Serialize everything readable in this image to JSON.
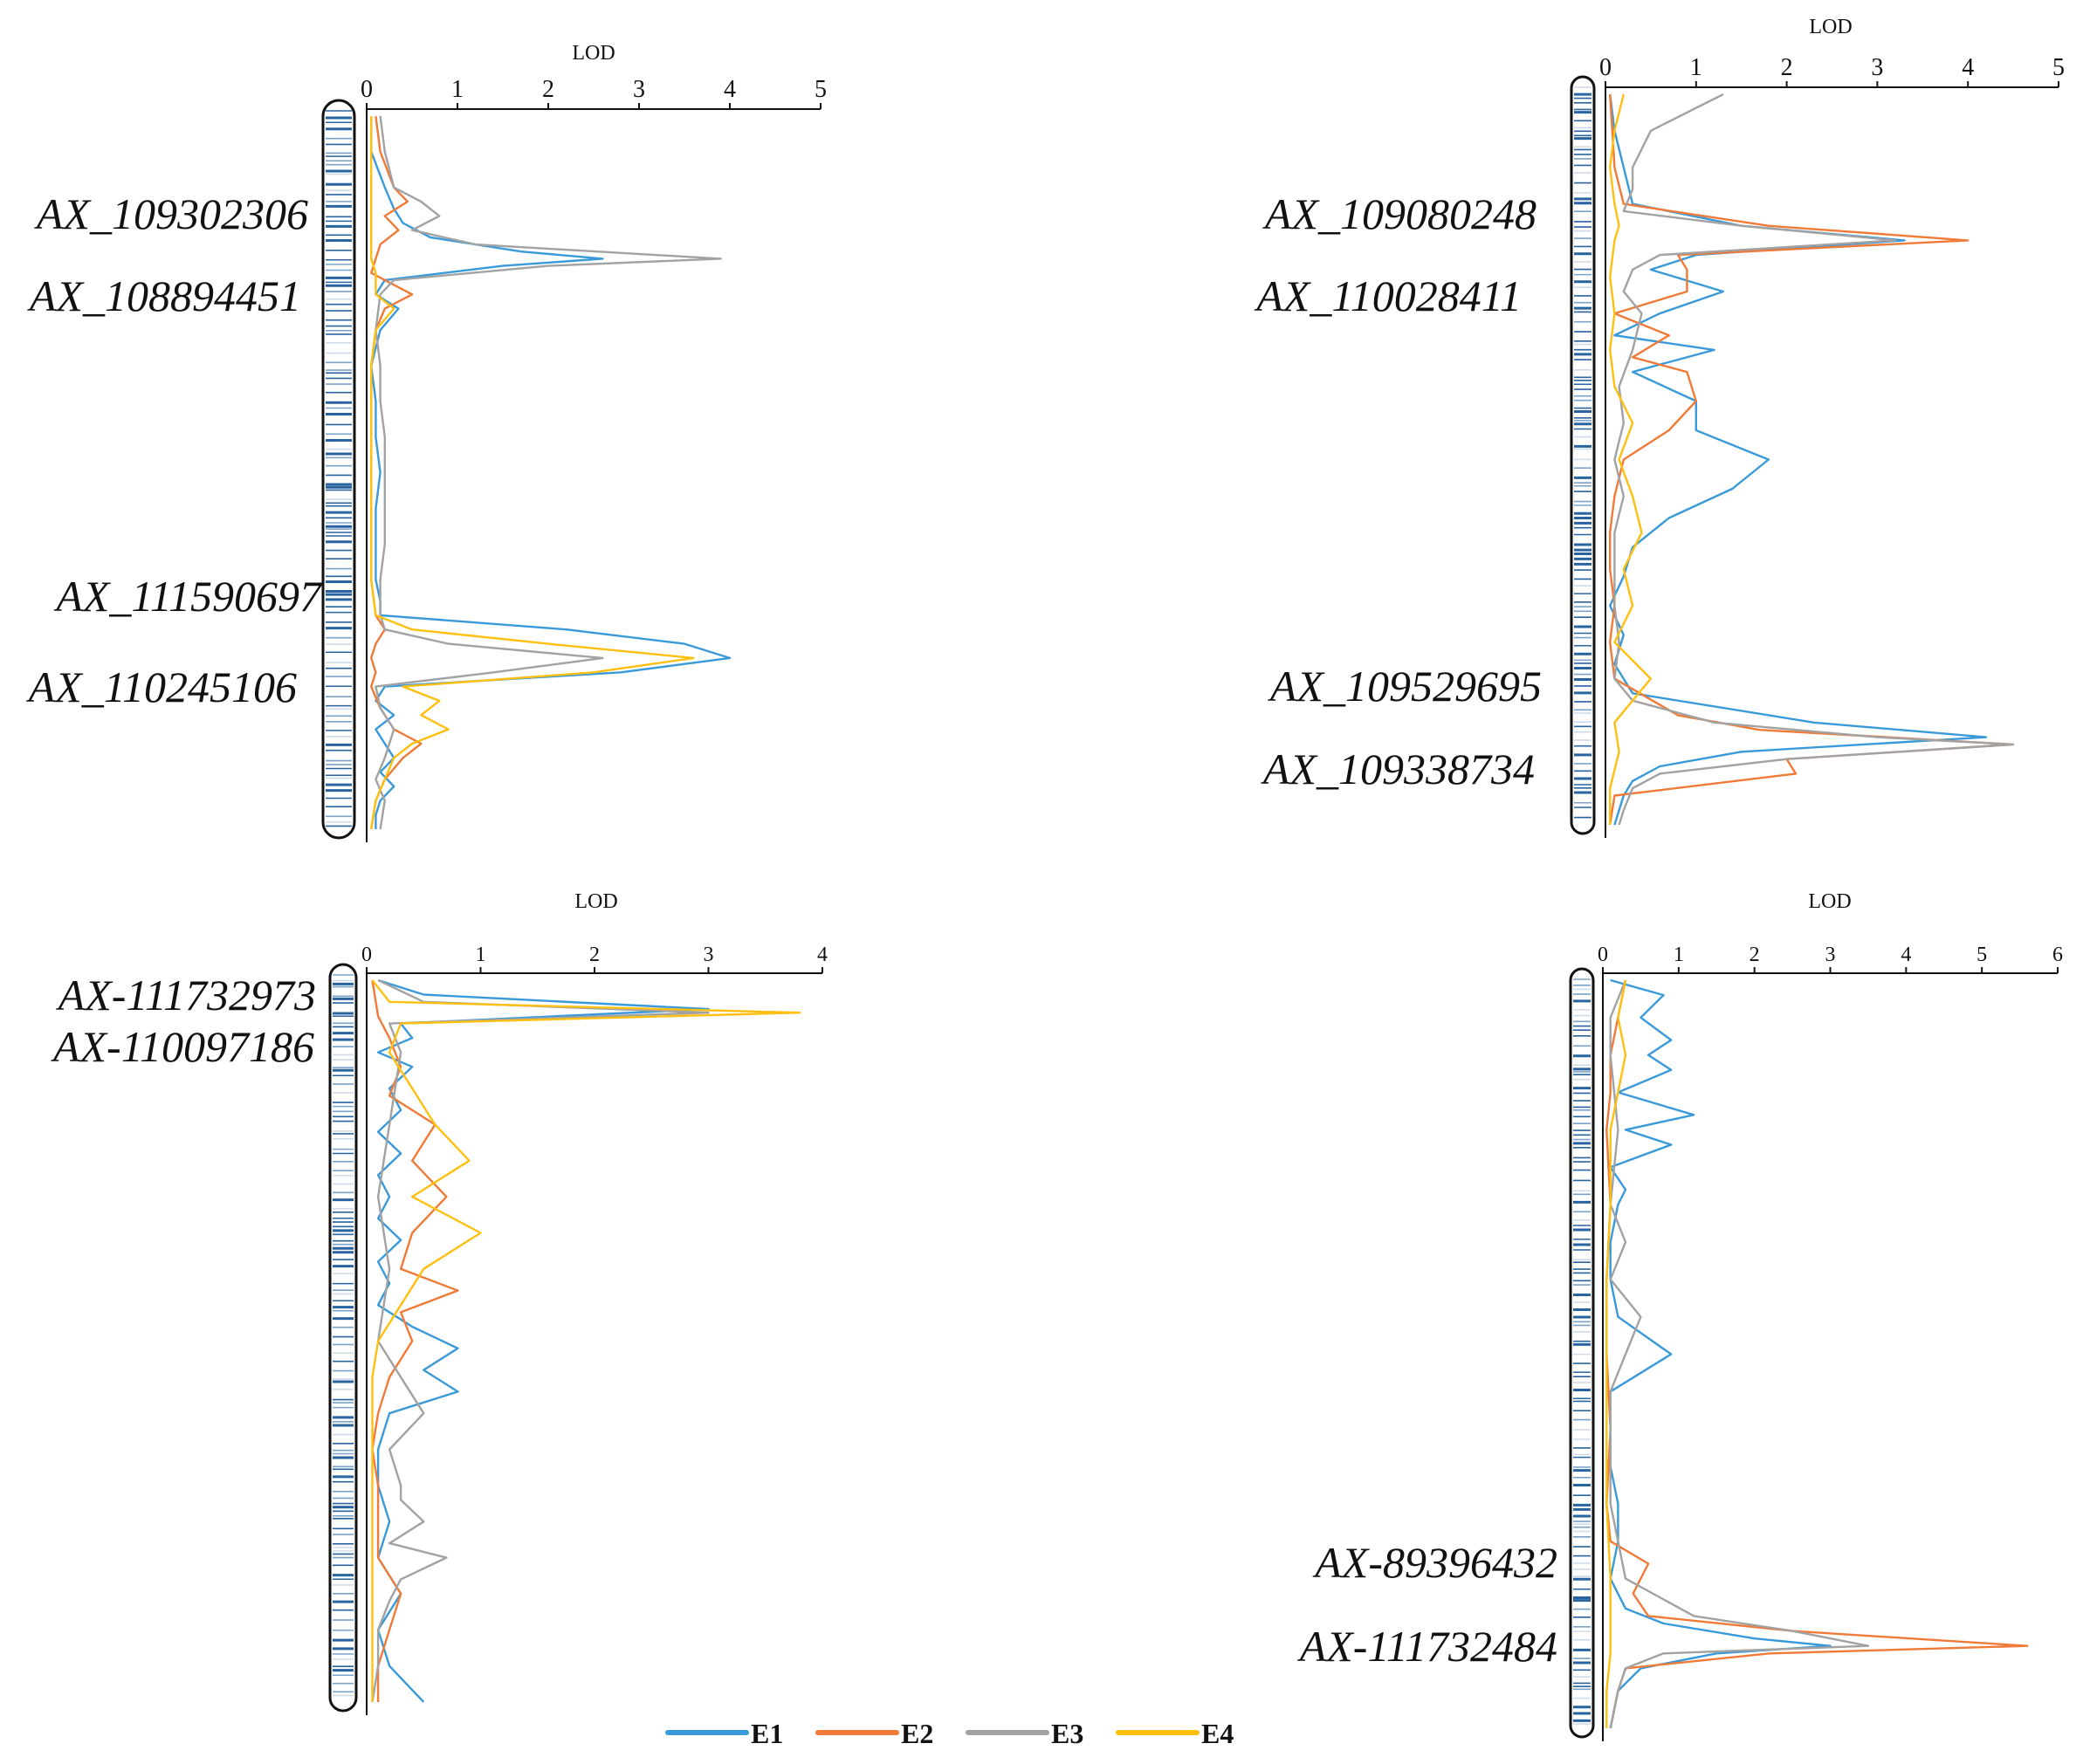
{
  "legend": [
    {
      "label": "E1",
      "color": "#3a9ad9"
    },
    {
      "label": "E2",
      "color": "#f07b38"
    },
    {
      "label": "E3",
      "color": "#a2a2a2"
    },
    {
      "label": "E4",
      "color": "#fec010"
    }
  ],
  "chart_data": [
    {
      "type": "line",
      "orientation": "vertical position, horizontal LOD",
      "xlabel": "LOD",
      "xticks": [
        "0",
        "1",
        "2",
        "3",
        "4",
        "5"
      ],
      "xlim": [
        0,
        5
      ],
      "grid": false,
      "markers": [
        "AX_109302306",
        "AX_108894451",
        "AX_111590697",
        "AX_110245106"
      ],
      "series": [
        {
          "name": "E1",
          "positions": [
            0,
            0.05,
            0.1,
            0.13,
            0.15,
            0.17,
            0.19,
            0.2,
            0.21,
            0.23,
            0.25,
            0.27,
            0.3,
            0.35,
            0.4,
            0.45,
            0.5,
            0.55,
            0.6,
            0.65,
            0.68,
            0.7,
            0.72,
            0.74,
            0.76,
            0.78,
            0.8,
            0.82,
            0.84,
            0.86,
            0.88,
            0.9,
            0.92,
            0.94,
            0.96,
            0.98,
            1.0
          ],
          "values": [
            0.05,
            0.05,
            0.2,
            0.3,
            0.4,
            0.7,
            1.7,
            2.6,
            1.5,
            0.2,
            0.1,
            0.35,
            0.15,
            0.05,
            0.1,
            0.1,
            0.15,
            0.1,
            0.1,
            0.1,
            0.15,
            0.15,
            2.2,
            3.5,
            4.0,
            2.8,
            0.2,
            0.1,
            0.3,
            0.1,
            0.2,
            0.3,
            0.15,
            0.3,
            0.15,
            0.1,
            0.1
          ]
        },
        {
          "name": "E2",
          "positions": [
            0,
            0.05,
            0.1,
            0.12,
            0.14,
            0.16,
            0.18,
            0.2,
            0.22,
            0.25,
            0.27,
            0.3,
            0.35,
            0.4,
            0.45,
            0.5,
            0.55,
            0.6,
            0.65,
            0.7,
            0.72,
            0.74,
            0.76,
            0.78,
            0.8,
            0.83,
            0.86,
            0.88,
            0.9,
            0.93,
            0.96,
            1.0
          ],
          "values": [
            0.1,
            0.15,
            0.3,
            0.45,
            0.2,
            0.35,
            0.15,
            0.1,
            0.05,
            0.5,
            0.2,
            0.1,
            0.05,
            0.05,
            0.05,
            0.05,
            0.05,
            0.05,
            0.05,
            0.1,
            0.2,
            0.1,
            0.05,
            0.1,
            0.05,
            0.15,
            0.3,
            0.6,
            0.4,
            0.2,
            0.1,
            0.05
          ]
        },
        {
          "name": "E3",
          "positions": [
            0,
            0.05,
            0.1,
            0.12,
            0.14,
            0.16,
            0.18,
            0.2,
            0.21,
            0.23,
            0.25,
            0.3,
            0.35,
            0.4,
            0.45,
            0.5,
            0.55,
            0.6,
            0.65,
            0.7,
            0.72,
            0.74,
            0.76,
            0.78,
            0.8,
            0.83,
            0.86,
            0.9,
            0.93,
            0.96,
            1.0
          ],
          "values": [
            0.15,
            0.2,
            0.3,
            0.6,
            0.8,
            0.5,
            1.2,
            3.9,
            2.0,
            0.3,
            0.15,
            0.1,
            0.15,
            0.15,
            0.2,
            0.2,
            0.2,
            0.2,
            0.15,
            0.15,
            0.2,
            0.9,
            2.6,
            1.4,
            0.1,
            0.15,
            0.3,
            0.2,
            0.1,
            0.2,
            0.15
          ]
        },
        {
          "name": "E4",
          "positions": [
            0,
            0.1,
            0.15,
            0.2,
            0.22,
            0.25,
            0.27,
            0.3,
            0.35,
            0.4,
            0.5,
            0.6,
            0.65,
            0.7,
            0.72,
            0.74,
            0.76,
            0.78,
            0.8,
            0.82,
            0.84,
            0.86,
            0.88,
            0.9,
            0.93,
            0.96,
            1.0
          ],
          "values": [
            0.05,
            0.05,
            0.05,
            0.05,
            0.1,
            0.1,
            0.3,
            0.1,
            0.05,
            0.05,
            0.05,
            0.05,
            0.05,
            0.1,
            0.5,
            2.0,
            3.6,
            2.5,
            0.4,
            0.8,
            0.6,
            0.9,
            0.5,
            0.3,
            0.2,
            0.1,
            0.05
          ]
        }
      ]
    },
    {
      "type": "line",
      "orientation": "vertical position, horizontal LOD",
      "xlabel": "LOD",
      "xticks": [
        "0",
        "1",
        "2",
        "3",
        "4",
        "5"
      ],
      "xlim": [
        0,
        5
      ],
      "grid": false,
      "markers": [
        "AX_109080248",
        "AX_110028411",
        "AX_109529695",
        "AX_109338734"
      ],
      "series": [
        {
          "name": "E1",
          "positions": [
            0,
            0.05,
            0.1,
            0.15,
            0.18,
            0.2,
            0.22,
            0.24,
            0.27,
            0.3,
            0.33,
            0.35,
            0.38,
            0.42,
            0.46,
            0.5,
            0.54,
            0.58,
            0.62,
            0.66,
            0.7,
            0.74,
            0.78,
            0.82,
            0.86,
            0.88,
            0.9,
            0.92,
            0.94,
            0.96,
            1.0
          ],
          "values": [
            0.05,
            0.1,
            0.2,
            0.3,
            1.5,
            3.3,
            1.0,
            0.5,
            1.3,
            0.6,
            0.1,
            1.2,
            0.3,
            1.0,
            1.0,
            1.8,
            1.4,
            0.7,
            0.3,
            0.2,
            0.05,
            0.2,
            0.1,
            0.3,
            2.3,
            4.2,
            1.5,
            0.6,
            0.3,
            0.2,
            0.1
          ]
        },
        {
          "name": "E2",
          "positions": [
            0,
            0.1,
            0.15,
            0.18,
            0.2,
            0.22,
            0.24,
            0.27,
            0.3,
            0.33,
            0.36,
            0.38,
            0.42,
            0.46,
            0.5,
            0.55,
            0.6,
            0.65,
            0.7,
            0.75,
            0.8,
            0.85,
            0.87,
            0.89,
            0.91,
            0.93,
            0.96,
            1.0
          ],
          "values": [
            0.05,
            0.1,
            0.2,
            1.8,
            4.0,
            0.8,
            0.9,
            0.9,
            0.1,
            0.7,
            0.3,
            0.9,
            1.0,
            0.7,
            0.2,
            0.1,
            0.05,
            0.05,
            0.1,
            0.05,
            0.1,
            0.8,
            1.7,
            4.5,
            2.0,
            2.1,
            0.1,
            0.05
          ]
        },
        {
          "name": "E3",
          "positions": [
            0,
            0.05,
            0.1,
            0.13,
            0.16,
            0.18,
            0.2,
            0.22,
            0.24,
            0.27,
            0.3,
            0.35,
            0.4,
            0.45,
            0.5,
            0.55,
            0.6,
            0.65,
            0.7,
            0.75,
            0.8,
            0.83,
            0.86,
            0.88,
            0.89,
            0.91,
            0.93,
            0.95,
            0.98,
            1.0
          ],
          "values": [
            1.3,
            0.5,
            0.3,
            0.3,
            0.2,
            1.5,
            3.2,
            0.6,
            0.3,
            0.2,
            0.4,
            0.3,
            0.15,
            0.2,
            0.1,
            0.2,
            0.1,
            0.1,
            0.1,
            0.15,
            0.1,
            0.3,
            1.2,
            3.0,
            4.5,
            2.0,
            0.6,
            0.3,
            0.2,
            0.15
          ]
        },
        {
          "name": "E4",
          "positions": [
            0,
            0.05,
            0.1,
            0.15,
            0.18,
            0.2,
            0.25,
            0.3,
            0.35,
            0.4,
            0.45,
            0.5,
            0.55,
            0.6,
            0.65,
            0.7,
            0.75,
            0.8,
            0.83,
            0.86,
            0.9,
            0.95,
            1.0
          ],
          "values": [
            0.2,
            0.1,
            0.05,
            0.1,
            0.15,
            0.1,
            0.05,
            0.1,
            0.05,
            0.1,
            0.3,
            0.15,
            0.3,
            0.4,
            0.2,
            0.3,
            0.1,
            0.5,
            0.3,
            0.1,
            0.15,
            0.05,
            0.05
          ]
        }
      ]
    },
    {
      "type": "line",
      "orientation": "vertical position, horizontal LOD",
      "xlabel": "LOD",
      "xticks": [
        "0",
        "1",
        "2",
        "3",
        "4"
      ],
      "xlim": [
        0,
        4
      ],
      "grid": false,
      "markers": [
        "AX-111732973",
        "AX-110097186"
      ],
      "series": [
        {
          "name": "E1",
          "positions": [
            0,
            0.02,
            0.04,
            0.06,
            0.08,
            0.1,
            0.12,
            0.15,
            0.18,
            0.21,
            0.24,
            0.27,
            0.3,
            0.33,
            0.36,
            0.39,
            0.42,
            0.45,
            0.48,
            0.51,
            0.54,
            0.57,
            0.6,
            0.65,
            0.7,
            0.75,
            0.8,
            0.85,
            0.9,
            0.95,
            1.0
          ],
          "values": [
            0.1,
            0.5,
            3.0,
            0.3,
            0.4,
            0.1,
            0.4,
            0.2,
            0.3,
            0.1,
            0.3,
            0.1,
            0.2,
            0.1,
            0.3,
            0.1,
            0.2,
            0.1,
            0.4,
            0.8,
            0.5,
            0.8,
            0.2,
            0.1,
            0.1,
            0.2,
            0.1,
            0.3,
            0.1,
            0.2,
            0.5
          ]
        },
        {
          "name": "E2",
          "positions": [
            0,
            0.05,
            0.08,
            0.12,
            0.16,
            0.2,
            0.25,
            0.3,
            0.35,
            0.4,
            0.43,
            0.46,
            0.5,
            0.55,
            0.6,
            0.65,
            0.7,
            0.75,
            0.8,
            0.85,
            0.9,
            0.95,
            1.0
          ],
          "values": [
            0.05,
            0.1,
            0.2,
            0.3,
            0.2,
            0.6,
            0.4,
            0.7,
            0.4,
            0.3,
            0.8,
            0.3,
            0.4,
            0.2,
            0.1,
            0.05,
            0.1,
            0.1,
            0.1,
            0.3,
            0.2,
            0.1,
            0.1
          ]
        },
        {
          "name": "E3",
          "positions": [
            0,
            0.03,
            0.045,
            0.06,
            0.1,
            0.2,
            0.3,
            0.4,
            0.5,
            0.55,
            0.6,
            0.65,
            0.7,
            0.72,
            0.75,
            0.78,
            0.8,
            0.83,
            0.86,
            0.9,
            0.95,
            1.0
          ],
          "values": [
            0.1,
            0.5,
            3.0,
            0.2,
            0.3,
            0.2,
            0.1,
            0.2,
            0.1,
            0.3,
            0.5,
            0.2,
            0.3,
            0.3,
            0.5,
            0.2,
            0.7,
            0.3,
            0.2,
            0.1,
            0.1,
            0.05
          ]
        },
        {
          "name": "E4",
          "positions": [
            0,
            0.03,
            0.045,
            0.06,
            0.1,
            0.15,
            0.2,
            0.25,
            0.3,
            0.35,
            0.4,
            0.45,
            0.5,
            0.55,
            0.6,
            0.7,
            0.8,
            0.9,
            1.0
          ],
          "values": [
            0.05,
            0.2,
            3.8,
            0.3,
            0.2,
            0.4,
            0.6,
            0.9,
            0.4,
            1.0,
            0.5,
            0.3,
            0.1,
            0.05,
            0.05,
            0.05,
            0.05,
            0.05,
            0.05
          ]
        }
      ]
    },
    {
      "type": "line",
      "orientation": "vertical position, horizontal LOD",
      "xlabel": "LOD",
      "xticks": [
        "0",
        "1",
        "2",
        "3",
        "4",
        "5",
        "6"
      ],
      "xlim": [
        0,
        6
      ],
      "grid": false,
      "markers": [
        "AX-89396432",
        "AX-111732484"
      ],
      "series": [
        {
          "name": "E1",
          "positions": [
            0,
            0.02,
            0.05,
            0.08,
            0.1,
            0.12,
            0.15,
            0.18,
            0.2,
            0.22,
            0.25,
            0.28,
            0.3,
            0.35,
            0.4,
            0.45,
            0.5,
            0.55,
            0.6,
            0.65,
            0.7,
            0.75,
            0.8,
            0.84,
            0.86,
            0.88,
            0.89,
            0.9,
            0.92,
            0.95,
            1.0
          ],
          "values": [
            0.1,
            0.8,
            0.5,
            0.9,
            0.6,
            0.9,
            0.2,
            1.2,
            0.3,
            0.9,
            0.1,
            0.3,
            0.2,
            0.1,
            0.1,
            0.2,
            0.9,
            0.1,
            0.1,
            0.1,
            0.2,
            0.2,
            0.1,
            0.3,
            0.8,
            2.0,
            3.0,
            1.5,
            0.5,
            0.2,
            0.1
          ]
        },
        {
          "name": "E2",
          "positions": [
            0,
            0.05,
            0.1,
            0.15,
            0.2,
            0.3,
            0.4,
            0.5,
            0.6,
            0.7,
            0.75,
            0.78,
            0.82,
            0.85,
            0.87,
            0.89,
            0.9,
            0.92,
            0.95,
            1.0
          ],
          "values": [
            0.3,
            0.2,
            0.1,
            0.1,
            0.05,
            0.1,
            0.05,
            0.05,
            0.1,
            0.05,
            0.1,
            0.6,
            0.4,
            0.6,
            2.5,
            5.6,
            2.2,
            0.3,
            0.2,
            0.1
          ]
        },
        {
          "name": "E3",
          "positions": [
            0,
            0.05,
            0.1,
            0.2,
            0.3,
            0.35,
            0.4,
            0.45,
            0.5,
            0.55,
            0.6,
            0.65,
            0.7,
            0.75,
            0.8,
            0.85,
            0.87,
            0.89,
            0.9,
            0.92,
            0.95,
            1.0
          ],
          "values": [
            0.3,
            0.1,
            0.1,
            0.2,
            0.1,
            0.3,
            0.1,
            0.5,
            0.3,
            0.1,
            0.1,
            0.1,
            0.1,
            0.2,
            0.3,
            1.2,
            2.5,
            3.5,
            0.8,
            0.3,
            0.2,
            0.1
          ]
        },
        {
          "name": "E4",
          "positions": [
            0,
            0.05,
            0.1,
            0.15,
            0.2,
            0.3,
            0.4,
            0.5,
            0.6,
            0.7,
            0.8,
            0.9,
            0.95,
            1.0
          ],
          "values": [
            0.3,
            0.2,
            0.3,
            0.2,
            0.1,
            0.1,
            0.05,
            0.05,
            0.05,
            0.05,
            0.1,
            0.1,
            0.05,
            0.05
          ]
        }
      ]
    }
  ]
}
